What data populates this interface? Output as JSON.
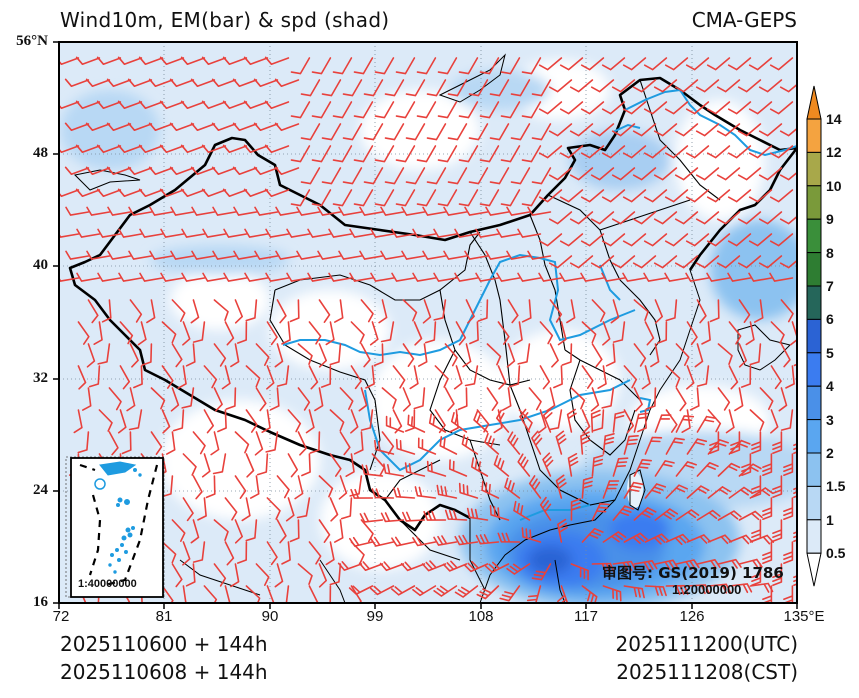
{
  "header": {
    "title": "Wind10m, EM(bar) & spd (shad)",
    "source": "CMA-GEPS"
  },
  "axes": {
    "y_ticks": [
      "56°N",
      "48",
      "40",
      "32",
      "24",
      "16"
    ],
    "x_ticks": [
      "72",
      "81",
      "90",
      "99",
      "108",
      "117",
      "126",
      "135°E"
    ]
  },
  "colorbar": {
    "labels": [
      "14",
      "12",
      "10",
      "9",
      "8",
      "7",
      "6",
      "5",
      "4",
      "3",
      "2",
      "1.5",
      "1",
      "0.5"
    ],
    "colors": [
      "#f4a340",
      "#a8a84a",
      "#7a9a3a",
      "#3a8f3a",
      "#2e7d32",
      "#25665a",
      "#2b63d4",
      "#3b7cf0",
      "#4a90e8",
      "#5aa6f0",
      "#8cc2f0",
      "#b8d8f4",
      "#dceaf8"
    ],
    "under_color": "#ffffff",
    "over_color": "#f08a20"
  },
  "inset": {
    "scale": "1:40000000"
  },
  "annotation": {
    "review_number": "审图号: GS(2019) 1786",
    "scale": "1:20000000"
  },
  "footer": {
    "init_utc": "2025110600 + 144h",
    "init_cst": "2025110608 + 144h",
    "valid_utc": "2025111200(UTC)",
    "valid_cst": "2025111208(CST)"
  },
  "colors": {
    "barb": "#e8413c",
    "river": "#1e9be0",
    "border": "#000000"
  }
}
